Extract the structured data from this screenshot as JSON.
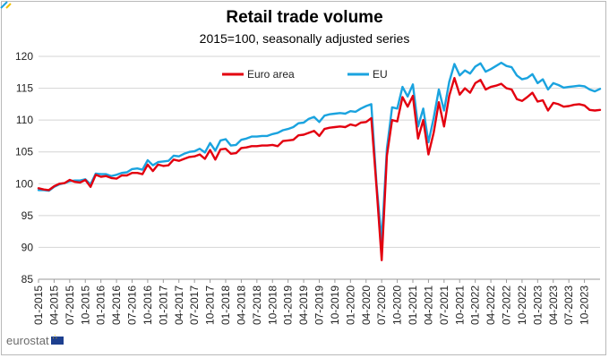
{
  "chart_data": {
    "type": "line",
    "title": "Retail trade volume",
    "subtitle": "2015=100, seasonally adjusted series",
    "xlabel": "",
    "ylabel": "",
    "ylim": [
      85,
      121
    ],
    "yticks": [
      85,
      90,
      95,
      100,
      105,
      110,
      115,
      120
    ],
    "grid": "horizontal",
    "legend_position": "top-left",
    "x_start": "2015-01",
    "x_tick_labels": [
      "01-2015",
      "04-2015",
      "07-2015",
      "10-2015",
      "01-2016",
      "04-2016",
      "07-2016",
      "10-2016",
      "01-2017",
      "04-2017",
      "07-2017",
      "10-2017",
      "01-2018",
      "04-2018",
      "07-2018",
      "10-2018",
      "01-2019",
      "04-2019",
      "07-2019",
      "10-2019",
      "01-2020",
      "04-2020",
      "07-2020",
      "10-2020",
      "01-2021",
      "04-2021",
      "07-2021",
      "10-2021",
      "01-2022",
      "04-2022",
      "07-2022",
      "10-2022",
      "01-2023",
      "04-2023",
      "07-2023",
      "10-2023"
    ],
    "series": [
      {
        "name": "Euro area",
        "color": "#e3000f",
        "values": [
          99.3,
          99.1,
          99.0,
          99.6,
          100.0,
          100.1,
          100.6,
          100.3,
          100.2,
          100.6,
          99.5,
          101.4,
          101.1,
          101.2,
          100.9,
          100.8,
          101.3,
          101.3,
          101.7,
          101.7,
          101.5,
          103.0,
          102.0,
          103.0,
          102.8,
          102.9,
          103.8,
          103.6,
          103.9,
          104.2,
          104.3,
          104.6,
          103.9,
          105.3,
          103.8,
          105.4,
          105.5,
          104.7,
          104.8,
          105.6,
          105.7,
          105.9,
          105.9,
          106.0,
          106.0,
          106.1,
          105.9,
          106.7,
          106.8,
          106.9,
          107.6,
          107.7,
          108.0,
          108.3,
          107.5,
          108.6,
          108.8,
          108.9,
          109.0,
          108.9,
          109.3,
          109.1,
          109.6,
          109.7,
          110.3,
          99.5,
          88.0,
          104.4,
          110.0,
          109.8,
          113.6,
          112.1,
          113.8,
          107.1,
          110.0,
          104.6,
          108.0,
          112.8,
          109.0,
          113.8,
          116.6,
          114.0,
          115.0,
          114.3,
          115.8,
          116.3,
          114.8,
          115.2,
          115.4,
          115.7,
          115.0,
          114.8,
          113.3,
          113.0,
          113.6,
          114.3,
          112.9,
          113.1,
          111.5,
          112.7,
          112.5,
          112.1,
          112.2,
          112.4,
          112.5,
          112.3,
          111.6,
          111.5,
          111.6
        ],
        "endpoints": [
          "01-2015",
          "10-2023"
        ]
      },
      {
        "name": "EU",
        "color": "#1aa3df",
        "values": [
          99.0,
          99.0,
          98.9,
          99.5,
          99.9,
          100.1,
          100.4,
          100.5,
          100.5,
          100.7,
          99.9,
          101.6,
          101.5,
          101.5,
          101.2,
          101.4,
          101.7,
          101.8,
          102.3,
          102.4,
          102.2,
          103.7,
          102.9,
          103.4,
          103.5,
          103.6,
          104.4,
          104.3,
          104.7,
          105.0,
          105.1,
          105.5,
          104.9,
          106.4,
          105.2,
          106.8,
          107.0,
          106.0,
          106.1,
          106.9,
          107.1,
          107.4,
          107.4,
          107.5,
          107.5,
          107.8,
          108.0,
          108.4,
          108.6,
          108.9,
          109.5,
          109.6,
          110.2,
          110.5,
          109.7,
          110.7,
          110.9,
          111.0,
          111.1,
          111.0,
          111.4,
          111.3,
          111.8,
          112.2,
          112.5,
          100.0,
          91.0,
          105.5,
          112.0,
          111.8,
          115.2,
          113.7,
          115.6,
          109.0,
          111.8,
          106.5,
          110.3,
          114.8,
          111.5,
          116.0,
          118.8,
          117.0,
          117.8,
          117.3,
          118.4,
          118.9,
          117.6,
          118.0,
          118.5,
          119.0,
          118.5,
          118.3,
          117.0,
          116.4,
          116.6,
          117.2,
          115.8,
          116.4,
          114.8,
          115.8,
          115.5,
          115.1,
          115.2,
          115.3,
          115.4,
          115.3,
          114.8,
          114.5,
          114.9
        ],
        "endpoints": [
          "01-2015",
          "10-2023"
        ]
      }
    ]
  },
  "branding": {
    "logo_text": "eurostat"
  }
}
